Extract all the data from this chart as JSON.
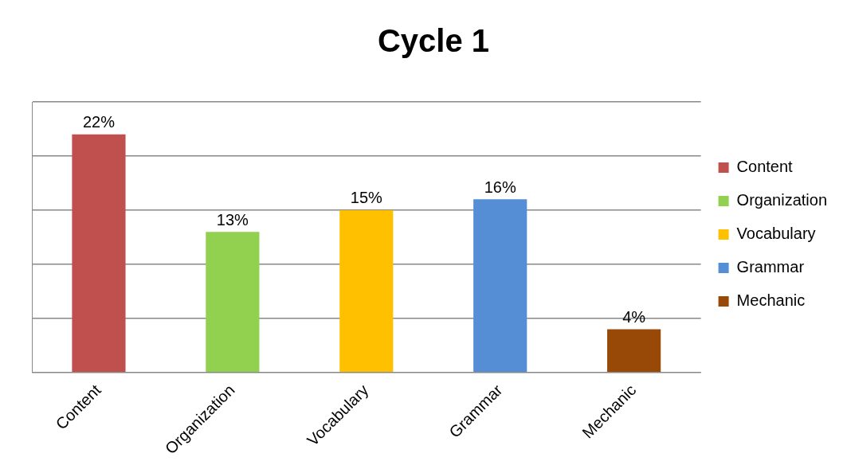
{
  "chart_data": {
    "type": "bar",
    "title": "Cycle 1",
    "categories": [
      "Content",
      "Organization",
      "Vocabulary",
      "Grammar",
      "Mechanic"
    ],
    "series": [
      {
        "name": "Content",
        "color": "#c0504d",
        "values": [
          22,
          null,
          null,
          null,
          null
        ],
        "value_labels": [
          "22%",
          null,
          null,
          null,
          null
        ]
      },
      {
        "name": "Organization",
        "color": "#92d050",
        "values": [
          null,
          13,
          null,
          null,
          null
        ],
        "value_labels": [
          null,
          "13%",
          null,
          null,
          null
        ]
      },
      {
        "name": "Vocabulary",
        "color": "#ffc000",
        "values": [
          null,
          null,
          15,
          null,
          null
        ],
        "value_labels": [
          null,
          null,
          "15%",
          null,
          null
        ]
      },
      {
        "name": "Grammar",
        "color": "#558ed5",
        "values": [
          null,
          null,
          null,
          16,
          null
        ],
        "value_labels": [
          null,
          null,
          null,
          "16%",
          null
        ]
      },
      {
        "name": "Mechanic",
        "color": "#984807",
        "values": [
          null,
          null,
          null,
          null,
          4
        ],
        "value_labels": [
          null,
          null,
          null,
          null,
          "4%"
        ]
      }
    ],
    "ylim": [
      0,
      25
    ],
    "yticks": [
      {
        "value": 0,
        "label": null
      },
      {
        "value": 5,
        "label": null
      },
      {
        "value": 10,
        "label": null
      },
      {
        "value": 15,
        "label": null
      },
      {
        "value": 20,
        "label": null
      },
      {
        "value": 25,
        "label": null
      }
    ],
    "tick_labels": "x",
    "grid": "y",
    "legend": "right"
  }
}
